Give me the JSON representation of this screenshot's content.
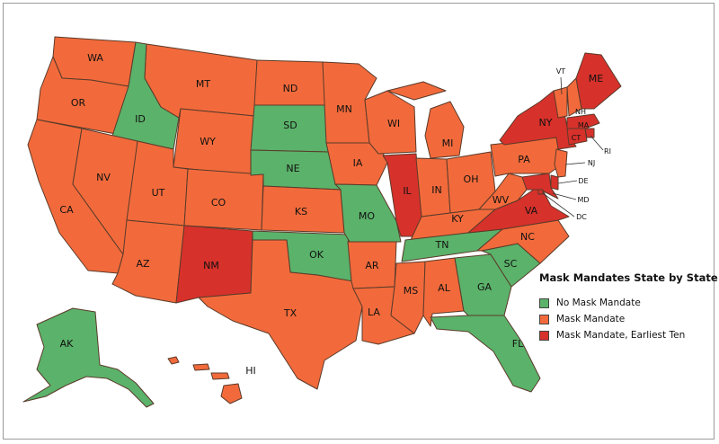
{
  "legend": {
    "title": "Mask Mandates State by State",
    "items": [
      {
        "label": "No Mask Mandate",
        "color": "#5bb26a"
      },
      {
        "label": "Mask Mandate",
        "color": "#f26a3b"
      },
      {
        "label": "Mask Mandate, Earliest Ten",
        "color": "#d7312b"
      }
    ]
  },
  "colors": {
    "none": "#5bb26a",
    "mandate": "#f26a3b",
    "earliest": "#d7312b"
  },
  "states": {
    "WA": {
      "label": "WA",
      "status": "mandate"
    },
    "OR": {
      "label": "OR",
      "status": "mandate"
    },
    "CA": {
      "label": "CA",
      "status": "mandate"
    },
    "ID": {
      "label": "ID",
      "status": "none"
    },
    "NV": {
      "label": "NV",
      "status": "mandate"
    },
    "MT": {
      "label": "MT",
      "status": "mandate"
    },
    "WY": {
      "label": "WY",
      "status": "mandate"
    },
    "UT": {
      "label": "UT",
      "status": "mandate"
    },
    "AZ": {
      "label": "AZ",
      "status": "mandate"
    },
    "CO": {
      "label": "CO",
      "status": "mandate"
    },
    "NM": {
      "label": "NM",
      "status": "earliest"
    },
    "ND": {
      "label": "ND",
      "status": "mandate"
    },
    "SD": {
      "label": "SD",
      "status": "none"
    },
    "NE": {
      "label": "NE",
      "status": "none"
    },
    "KS": {
      "label": "KS",
      "status": "mandate"
    },
    "OK": {
      "label": "OK",
      "status": "none"
    },
    "TX": {
      "label": "TX",
      "status": "mandate"
    },
    "MN": {
      "label": "MN",
      "status": "mandate"
    },
    "IA": {
      "label": "IA",
      "status": "mandate"
    },
    "MO": {
      "label": "MO",
      "status": "none"
    },
    "AR": {
      "label": "AR",
      "status": "mandate"
    },
    "LA": {
      "label": "LA",
      "status": "mandate"
    },
    "WI": {
      "label": "WI",
      "status": "mandate"
    },
    "IL": {
      "label": "IL",
      "status": "earliest"
    },
    "MI": {
      "label": "MI",
      "status": "mandate"
    },
    "IN": {
      "label": "IN",
      "status": "mandate"
    },
    "OH": {
      "label": "OH",
      "status": "mandate"
    },
    "KY": {
      "label": "KY",
      "status": "mandate"
    },
    "TN": {
      "label": "TN",
      "status": "none"
    },
    "MS": {
      "label": "MS",
      "status": "mandate"
    },
    "AL": {
      "label": "AL",
      "status": "mandate"
    },
    "GA": {
      "label": "GA",
      "status": "none"
    },
    "FL": {
      "label": "FL",
      "status": "none"
    },
    "SC": {
      "label": "SC",
      "status": "none"
    },
    "NC": {
      "label": "NC",
      "status": "mandate"
    },
    "VA": {
      "label": "VA",
      "status": "earliest"
    },
    "WV": {
      "label": "WV",
      "status": "mandate"
    },
    "PA": {
      "label": "PA",
      "status": "mandate"
    },
    "NY": {
      "label": "NY",
      "status": "earliest"
    },
    "VT": {
      "label": "VT",
      "status": "mandate"
    },
    "NH": {
      "label": "NH",
      "status": "mandate"
    },
    "ME": {
      "label": "ME",
      "status": "earliest"
    },
    "MA": {
      "label": "MA",
      "status": "earliest"
    },
    "RI": {
      "label": "RI",
      "status": "earliest"
    },
    "CT": {
      "label": "CT",
      "status": "earliest"
    },
    "NJ": {
      "label": "NJ",
      "status": "mandate"
    },
    "DE": {
      "label": "DE",
      "status": "earliest"
    },
    "MD": {
      "label": "MD",
      "status": "earliest"
    },
    "DC": {
      "label": "DC",
      "status": "earliest"
    },
    "AK": {
      "label": "AK",
      "status": "none"
    },
    "HI": {
      "label": "HI",
      "status": "mandate"
    }
  }
}
